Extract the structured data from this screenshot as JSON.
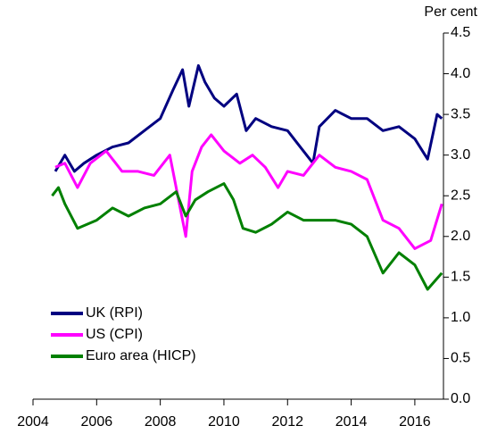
{
  "chart_data": {
    "type": "line",
    "y_label": "Per cent",
    "xlim": [
      2004,
      2016.9
    ],
    "xticks": [
      2004,
      2006,
      2008,
      2010,
      2012,
      2014,
      2016
    ],
    "ylim": [
      0,
      4.5
    ],
    "yticks": [
      {
        "value": 0,
        "label": "0.0"
      },
      0.5,
      {
        "value": 1,
        "label": "1.0"
      },
      1.5,
      {
        "value": 2,
        "label": "2.0"
      },
      2.5,
      {
        "value": 3,
        "label": "3.0"
      },
      3.5,
      {
        "value": 4,
        "label": "4.0"
      },
      4.5
    ],
    "legend": "lower left",
    "series": [
      {
        "name": "UK (RPI)",
        "color": "#000080",
        "x": [
          2004.7,
          2005.0,
          2005.3,
          2005.6,
          2006.0,
          2006.5,
          2007.0,
          2007.5,
          2008.0,
          2008.4,
          2008.7,
          2008.9,
          2009.2,
          2009.4,
          2009.7,
          2010.0,
          2010.4,
          2010.7,
          2011.0,
          2011.5,
          2012.0,
          2012.4,
          2012.8,
          2013.0,
          2013.5,
          2014.0,
          2014.5,
          2015.0,
          2015.5,
          2016.0,
          2016.4,
          2016.7,
          2016.85
        ],
        "values": [
          2.8,
          3.0,
          2.8,
          2.9,
          3.0,
          3.1,
          3.15,
          3.3,
          3.45,
          3.8,
          4.05,
          3.6,
          4.1,
          3.9,
          3.7,
          3.6,
          3.75,
          3.3,
          3.45,
          3.35,
          3.3,
          3.1,
          2.9,
          3.35,
          3.55,
          3.45,
          3.45,
          3.3,
          3.35,
          3.2,
          2.95,
          3.5,
          3.45
        ]
      },
      {
        "name": "US (CPI)",
        "color": "#ff00ff",
        "x": [
          2004.7,
          2005.0,
          2005.4,
          2005.8,
          2006.3,
          2006.8,
          2007.3,
          2007.8,
          2008.3,
          2008.8,
          2009.0,
          2009.3,
          2009.6,
          2010.0,
          2010.5,
          2010.9,
          2011.3,
          2011.7,
          2012.0,
          2012.5,
          2013.0,
          2013.5,
          2014.0,
          2014.5,
          2015.0,
          2015.5,
          2016.0,
          2016.5,
          2016.85
        ],
        "values": [
          2.85,
          2.9,
          2.6,
          2.9,
          3.05,
          2.8,
          2.8,
          2.75,
          3.0,
          2.0,
          2.8,
          3.1,
          3.25,
          3.05,
          2.9,
          3.0,
          2.85,
          2.6,
          2.8,
          2.75,
          3.0,
          2.85,
          2.8,
          2.7,
          2.2,
          2.1,
          1.85,
          1.95,
          2.4
        ]
      },
      {
        "name": "Euro area (HICP)",
        "color": "#008000",
        "x": [
          2004.6,
          2004.8,
          2005.0,
          2005.4,
          2006.0,
          2006.5,
          2007.0,
          2007.5,
          2008.0,
          2008.5,
          2008.8,
          2009.1,
          2009.5,
          2010.0,
          2010.3,
          2010.6,
          2011.0,
          2011.5,
          2012.0,
          2012.5,
          2013.0,
          2013.5,
          2014.0,
          2014.5,
          2015.0,
          2015.5,
          2016.0,
          2016.4,
          2016.85
        ],
        "values": [
          2.5,
          2.6,
          2.4,
          2.1,
          2.2,
          2.35,
          2.25,
          2.35,
          2.4,
          2.55,
          2.25,
          2.45,
          2.55,
          2.65,
          2.45,
          2.1,
          2.05,
          2.15,
          2.3,
          2.2,
          2.2,
          2.2,
          2.15,
          2.0,
          1.55,
          1.8,
          1.65,
          1.35,
          1.55
        ]
      }
    ]
  }
}
